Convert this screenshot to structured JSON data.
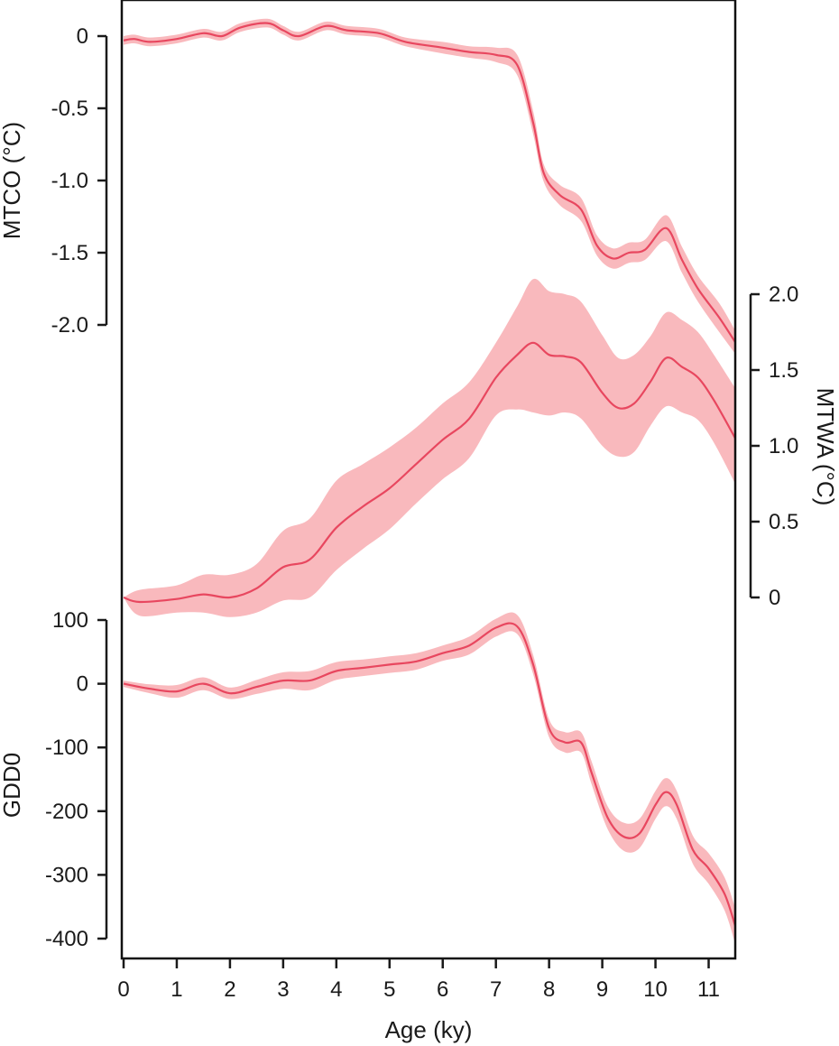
{
  "chart_data": {
    "type": "line",
    "x_axis": {
      "label": "Age (ky)",
      "range": [
        0,
        11.5
      ],
      "ticks": [
        0,
        1,
        2,
        3,
        4,
        5,
        6,
        7,
        8,
        9,
        10,
        11
      ],
      "tick_labels": [
        "0",
        "1",
        "2",
        "3",
        "4",
        "5",
        "6",
        "7",
        "8",
        "9",
        "10",
        "11"
      ]
    },
    "colors": {
      "line": "#e8475f",
      "band": "#f9b9bd"
    },
    "series": [
      {
        "name": "MTCO (°C)",
        "axis": {
          "side": "left",
          "range": [
            -2.0,
            0
          ],
          "ticks": [
            0,
            -0.5,
            -1.0,
            -1.5,
            -2.0
          ],
          "tick_labels": [
            "0",
            "-0.5",
            "-1.0",
            "-1.5",
            "-2.0"
          ]
        },
        "x": [
          0,
          0.2,
          0.5,
          1.0,
          1.5,
          1.85,
          2.2,
          2.7,
          3.0,
          3.3,
          3.8,
          4.2,
          4.8,
          5.3,
          6.0,
          6.5,
          7.0,
          7.4,
          7.7,
          7.9,
          8.2,
          8.6,
          8.9,
          9.2,
          9.5,
          9.8,
          10.2,
          10.5,
          10.8,
          11.2,
          11.5
        ],
        "y": [
          -0.03,
          -0.02,
          -0.04,
          -0.02,
          0.02,
          0.0,
          0.06,
          0.09,
          0.04,
          0.0,
          0.07,
          0.04,
          0.02,
          -0.04,
          -0.08,
          -0.11,
          -0.13,
          -0.2,
          -0.6,
          -0.95,
          -1.1,
          -1.2,
          -1.45,
          -1.54,
          -1.5,
          -1.48,
          -1.33,
          -1.55,
          -1.75,
          -1.95,
          -2.12
        ],
        "lower": [
          -0.06,
          -0.05,
          -0.07,
          -0.05,
          -0.01,
          -0.03,
          0.03,
          0.06,
          0.01,
          -0.03,
          0.04,
          0.01,
          -0.01,
          -0.07,
          -0.12,
          -0.15,
          -0.18,
          -0.27,
          -0.68,
          -1.01,
          -1.17,
          -1.28,
          -1.52,
          -1.61,
          -1.57,
          -1.55,
          -1.42,
          -1.64,
          -1.84,
          -2.05,
          -2.2
        ],
        "upper": [
          0.0,
          0.01,
          -0.01,
          0.01,
          0.05,
          0.03,
          0.09,
          0.12,
          0.07,
          0.03,
          0.1,
          0.07,
          0.05,
          -0.01,
          -0.04,
          -0.07,
          -0.08,
          -0.13,
          -0.52,
          -0.89,
          -1.03,
          -1.12,
          -1.38,
          -1.47,
          -1.43,
          -1.41,
          -1.24,
          -1.46,
          -1.66,
          -1.85,
          -2.04
        ]
      },
      {
        "name": "MTWA (°C)",
        "axis": {
          "side": "right",
          "range": [
            0,
            2.0
          ],
          "ticks": [
            0,
            0.5,
            1.0,
            1.5,
            2.0
          ],
          "tick_labels": [
            "0",
            "0.5",
            "1.0",
            "1.5",
            "2.0"
          ]
        },
        "x": [
          0,
          0.3,
          1.0,
          1.5,
          2.0,
          2.5,
          3.0,
          3.5,
          4.0,
          4.5,
          5.0,
          5.5,
          6.0,
          6.5,
          7.0,
          7.4,
          7.7,
          8.0,
          8.3,
          8.6,
          9.0,
          9.3,
          9.6,
          9.9,
          10.2,
          10.5,
          10.8,
          11.1,
          11.5
        ],
        "y": [
          0.0,
          -0.03,
          -0.01,
          0.02,
          0.0,
          0.06,
          0.2,
          0.25,
          0.46,
          0.6,
          0.72,
          0.88,
          1.04,
          1.18,
          1.45,
          1.6,
          1.68,
          1.6,
          1.59,
          1.55,
          1.35,
          1.25,
          1.28,
          1.42,
          1.58,
          1.52,
          1.45,
          1.3,
          1.05
        ],
        "lower": [
          0.0,
          -0.12,
          -0.1,
          -0.1,
          -0.13,
          -0.1,
          -0.02,
          0.0,
          0.18,
          0.32,
          0.45,
          0.62,
          0.78,
          0.92,
          1.2,
          1.24,
          1.22,
          1.2,
          1.22,
          1.18,
          1.0,
          0.93,
          0.96,
          1.13,
          1.26,
          1.22,
          1.17,
          1.02,
          0.75
        ],
        "upper": [
          0.0,
          0.05,
          0.08,
          0.15,
          0.15,
          0.22,
          0.44,
          0.52,
          0.77,
          0.88,
          0.99,
          1.12,
          1.28,
          1.42,
          1.68,
          1.92,
          2.1,
          2.02,
          2.0,
          1.95,
          1.73,
          1.58,
          1.6,
          1.72,
          1.88,
          1.83,
          1.75,
          1.6,
          1.38
        ]
      },
      {
        "name": "GDD0",
        "axis": {
          "side": "left",
          "range": [
            -400,
            100
          ],
          "ticks": [
            100,
            0,
            -100,
            -200,
            -300,
            -400
          ],
          "tick_labels": [
            "100",
            "0",
            "-100",
            "-200",
            "-300",
            "-400"
          ]
        },
        "x": [
          0,
          0.5,
          1.0,
          1.5,
          2.0,
          2.5,
          3.0,
          3.5,
          4.0,
          4.5,
          5.0,
          5.5,
          6.0,
          6.5,
          7.0,
          7.4,
          7.7,
          8.0,
          8.3,
          8.6,
          8.8,
          9.1,
          9.4,
          9.7,
          10.0,
          10.2,
          10.4,
          10.7,
          11.0,
          11.3,
          11.5
        ],
        "y": [
          0,
          -8,
          -12,
          0,
          -15,
          -5,
          5,
          5,
          20,
          25,
          30,
          35,
          48,
          60,
          88,
          90,
          30,
          -70,
          -92,
          -92,
          -140,
          -210,
          -240,
          -235,
          -190,
          -170,
          -190,
          -260,
          -290,
          -330,
          -380
        ],
        "lower": [
          -5,
          -15,
          -22,
          -10,
          -24,
          -16,
          -8,
          -10,
          6,
          12,
          17,
          22,
          36,
          46,
          74,
          78,
          15,
          -84,
          -108,
          -108,
          -158,
          -228,
          -262,
          -258,
          -212,
          -192,
          -212,
          -282,
          -314,
          -356,
          -408
        ],
        "upper": [
          5,
          -1,
          -2,
          10,
          -6,
          6,
          18,
          20,
          34,
          38,
          43,
          48,
          60,
          74,
          102,
          108,
          45,
          -56,
          -76,
          -76,
          -122,
          -192,
          -218,
          -212,
          -168,
          -148,
          -168,
          -238,
          -266,
          -304,
          -352
        ]
      }
    ]
  }
}
